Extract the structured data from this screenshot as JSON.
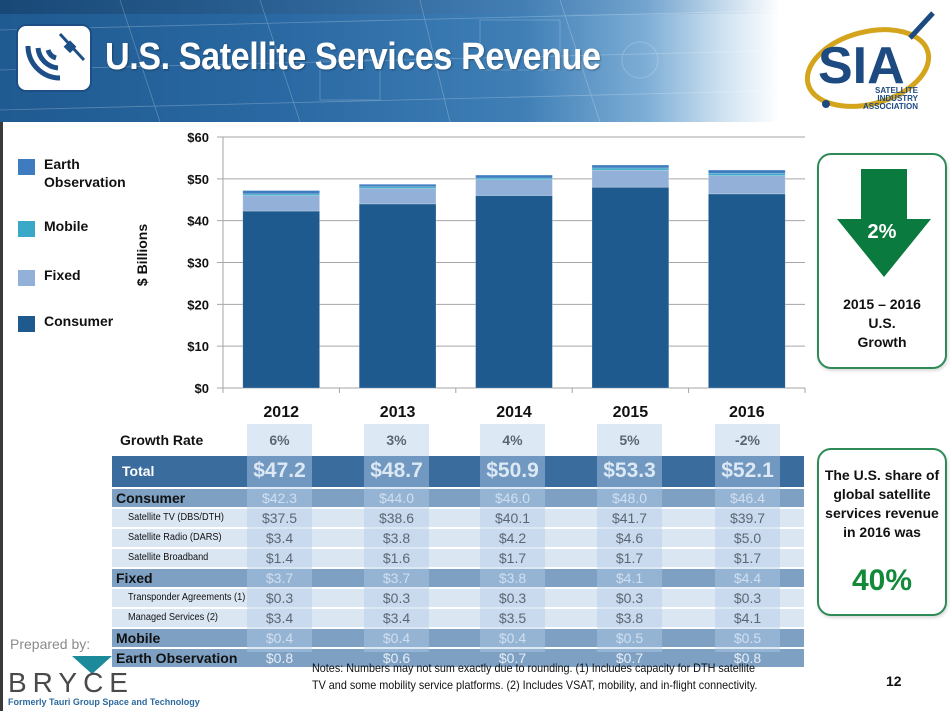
{
  "header": {
    "title": "U.S. Satellite Services Revenue",
    "logo_text": "SIA",
    "logo_subtext": [
      "SATELLITE",
      "INDUSTRY",
      "ASSOCIATION"
    ]
  },
  "legend": [
    {
      "label": "Earth Observation",
      "color": "#3f7cbf"
    },
    {
      "label": "Mobile",
      "color": "#3aa9c8"
    },
    {
      "label": "Fixed",
      "color": "#93b1d8"
    },
    {
      "label": "Consumer",
      "color": "#1f5a8e"
    }
  ],
  "chart_data": {
    "type": "bar",
    "stacked": true,
    "title": "U.S. Satellite Services Revenue",
    "xlabel": "",
    "ylabel": "$ Billions",
    "ylim": [
      0,
      60
    ],
    "yticks": [
      0,
      10,
      20,
      30,
      40,
      50,
      60
    ],
    "ytick_labels": [
      "$0",
      "$10",
      "$20",
      "$30",
      "$40",
      "$50",
      "$60"
    ],
    "grid": true,
    "legend_position": "left",
    "categories": [
      "2012",
      "2013",
      "2014",
      "2015",
      "2016"
    ],
    "series": [
      {
        "name": "Consumer",
        "color": "#1f5a8e",
        "values": [
          42.3,
          44.0,
          46.0,
          48.0,
          46.4
        ]
      },
      {
        "name": "Fixed",
        "color": "#93b1d8",
        "values": [
          3.7,
          3.7,
          3.8,
          4.1,
          4.4
        ]
      },
      {
        "name": "Mobile",
        "color": "#3aa9c8",
        "values": [
          0.4,
          0.4,
          0.4,
          0.5,
          0.5
        ]
      },
      {
        "name": "Earth Observation",
        "color": "#3f7cbf",
        "values": [
          0.8,
          0.6,
          0.7,
          0.7,
          0.8
        ]
      }
    ]
  },
  "table": {
    "growth_label": "Growth Rate",
    "growth_rates": [
      "6%",
      "3%",
      "4%",
      "5%",
      "-2%"
    ],
    "rows": [
      {
        "type": "total",
        "label": "Total",
        "values": [
          "$47.2",
          "$48.7",
          "$50.9",
          "$53.3",
          "$52.1"
        ]
      },
      {
        "type": "cat",
        "label": "Consumer",
        "values": [
          "$42.3",
          "$44.0",
          "$46.0",
          "$48.0",
          "$46.4"
        ]
      },
      {
        "type": "sub",
        "label": "Satellite TV (DBS/DTH)",
        "values": [
          "$37.5",
          "$38.6",
          "$40.1",
          "$41.7",
          "$39.7"
        ]
      },
      {
        "type": "sub",
        "label": "Satellite Radio (DARS)",
        "values": [
          "$3.4",
          "$3.8",
          "$4.2",
          "$4.6",
          "$5.0"
        ]
      },
      {
        "type": "sub",
        "label": "Satellite Broadband",
        "values": [
          "$1.4",
          "$1.6",
          "$1.7",
          "$1.7",
          "$1.7"
        ]
      },
      {
        "type": "cat",
        "label": "Fixed",
        "values": [
          "$3.7",
          "$3.7",
          "$3.8",
          "$4.1",
          "$4.4"
        ]
      },
      {
        "type": "sub",
        "label": "Transponder Agreements (1)",
        "values": [
          "$0.3",
          "$0.3",
          "$0.3",
          "$0.3",
          "$0.3"
        ]
      },
      {
        "type": "sub",
        "label": "Managed Services (2)",
        "values": [
          "$3.4",
          "$3.4",
          "$3.5",
          "$3.8",
          "$4.1"
        ]
      },
      {
        "type": "cat",
        "label": "Mobile",
        "values": [
          "$0.4",
          "$0.4",
          "$0.4",
          "$0.5",
          "$0.5"
        ]
      },
      {
        "type": "cat",
        "label": "Earth Observation",
        "values": [
          "$0.8",
          "$0.6",
          "$0.7",
          "$0.7",
          "$0.8"
        ]
      }
    ]
  },
  "cards": {
    "growth": {
      "value": "2%",
      "direction": "down",
      "caption_lines": [
        "2015 – 2016",
        "U.S.",
        "Growth"
      ],
      "color": "#0b7a3e"
    },
    "share": {
      "text_lines": [
        "The U.S. share of",
        "global satellite",
        "services revenue",
        "in 2016 was"
      ],
      "value": "40%",
      "color": "#138a3a"
    }
  },
  "footer": {
    "prepared_by": "Prepared by:",
    "company": "BRYCE",
    "tagline": "Formerly Tauri Group Space and Technology",
    "notes_line1": "Notes: Numbers may not sum exactly due to rounding. (1) Includes capacity for DTH satellite",
    "notes_line2": "TV and some mobility service platforms. (2) Includes VSAT, mobility, and in-flight connectivity.",
    "page_number": "12"
  }
}
